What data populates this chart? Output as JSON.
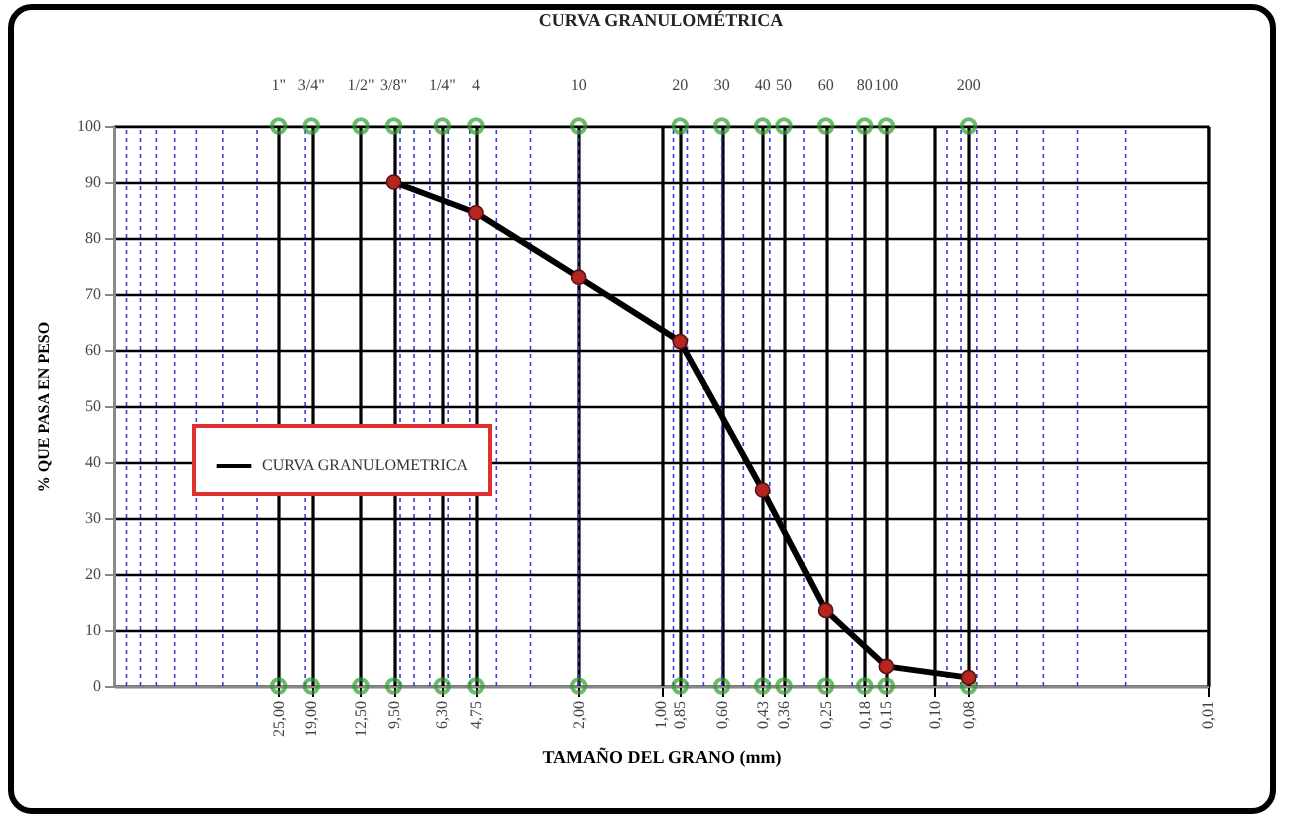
{
  "chart_data": {
    "type": "line",
    "title": "CURVA GRANULOMÉTRICA",
    "xlabel": "TAMAÑO DEL GRANO (mm)",
    "ylabel": "% QUE PASA EN PESO",
    "log": "x",
    "xlim": [
      100,
      0.01
    ],
    "ylim": [
      0,
      100
    ],
    "xticks": [
      {
        "value": 25,
        "label": "25,00"
      },
      {
        "value": 19,
        "label": "19,00"
      },
      {
        "value": 12.5,
        "label": "12,50"
      },
      {
        "value": 9.5,
        "label": "9,50"
      },
      {
        "value": 6.3,
        "label": "6,30"
      },
      {
        "value": 4.75,
        "label": "4,75"
      },
      {
        "value": 2,
        "label": "2,00"
      },
      {
        "value": 1,
        "label": "1,00"
      },
      {
        "value": 0.85,
        "label": "0,85"
      },
      {
        "value": 0.6,
        "label": "0,60"
      },
      {
        "value": 0.425,
        "label": "0,43"
      },
      {
        "value": 0.355,
        "label": "0,36"
      },
      {
        "value": 0.25,
        "label": "0,25"
      },
      {
        "value": 0.18,
        "label": "0,18"
      },
      {
        "value": 0.15,
        "label": "0,15"
      },
      {
        "value": 0.1,
        "label": "0,10"
      },
      {
        "value": 0.075,
        "label": "0,08"
      },
      {
        "value": 0.01,
        "label": "0,01"
      }
    ],
    "yticks": [
      0,
      10,
      20,
      30,
      40,
      50,
      60,
      70,
      80,
      90,
      100
    ],
    "annotations": [
      {
        "text": "1\"",
        "x": 25,
        "y": 100
      },
      {
        "text": "3/4\"",
        "x": 19,
        "y": 100
      },
      {
        "text": "1/2\"",
        "x": 12.5,
        "y": 100
      },
      {
        "text": "3/8\"",
        "x": 9.5,
        "y": 100
      },
      {
        "text": "1/4\"",
        "x": 6.3,
        "y": 100
      },
      {
        "text": "4",
        "x": 4.75,
        "y": 100
      },
      {
        "text": "10",
        "x": 2,
        "y": 100
      },
      {
        "text": "20",
        "x": 0.85,
        "y": 100
      },
      {
        "text": "30",
        "x": 0.6,
        "y": 100
      },
      {
        "text": "40",
        "x": 0.425,
        "y": 100
      },
      {
        "text": "50",
        "x": 0.355,
        "y": 100
      },
      {
        "text": "60",
        "x": 0.25,
        "y": 100
      },
      {
        "text": "80",
        "x": 0.18,
        "y": 100
      },
      {
        "text": "100",
        "x": 0.15,
        "y": 100
      },
      {
        "text": "200",
        "x": 0.075,
        "y": 100
      }
    ],
    "grid": true,
    "legend": "left",
    "marker": "circle",
    "series": [
      {
        "name": "CURVA GRANULOMETRICA",
        "color": "#000000",
        "x": [
          9.5,
          4.75,
          2,
          0.85,
          0.425,
          0.25,
          0.15,
          0.075
        ],
        "values": [
          90,
          84.5,
          73,
          61.5,
          35,
          13.5,
          3.5,
          1.5
        ]
      },
      {
        "type": "scatter",
        "color": "#2e9e2e",
        "x": [
          25,
          19,
          12.5,
          9.5,
          6.3,
          4.75,
          2,
          0.85,
          0.6,
          0.425,
          0.355,
          0.25,
          0.18,
          0.15,
          0.075,
          25,
          19,
          12.5,
          9.5,
          6.3,
          4.75,
          2,
          0.85,
          0.6,
          0.425,
          0.355,
          0.25,
          0.18,
          0.15,
          0.075
        ],
        "values": [
          0,
          0,
          0,
          0,
          0,
          0,
          0,
          0,
          0,
          0,
          0,
          0,
          0,
          0,
          0,
          100,
          100,
          100,
          100,
          100,
          100,
          100,
          100,
          100,
          100,
          100,
          100,
          100,
          100,
          100
        ]
      }
    ]
  }
}
